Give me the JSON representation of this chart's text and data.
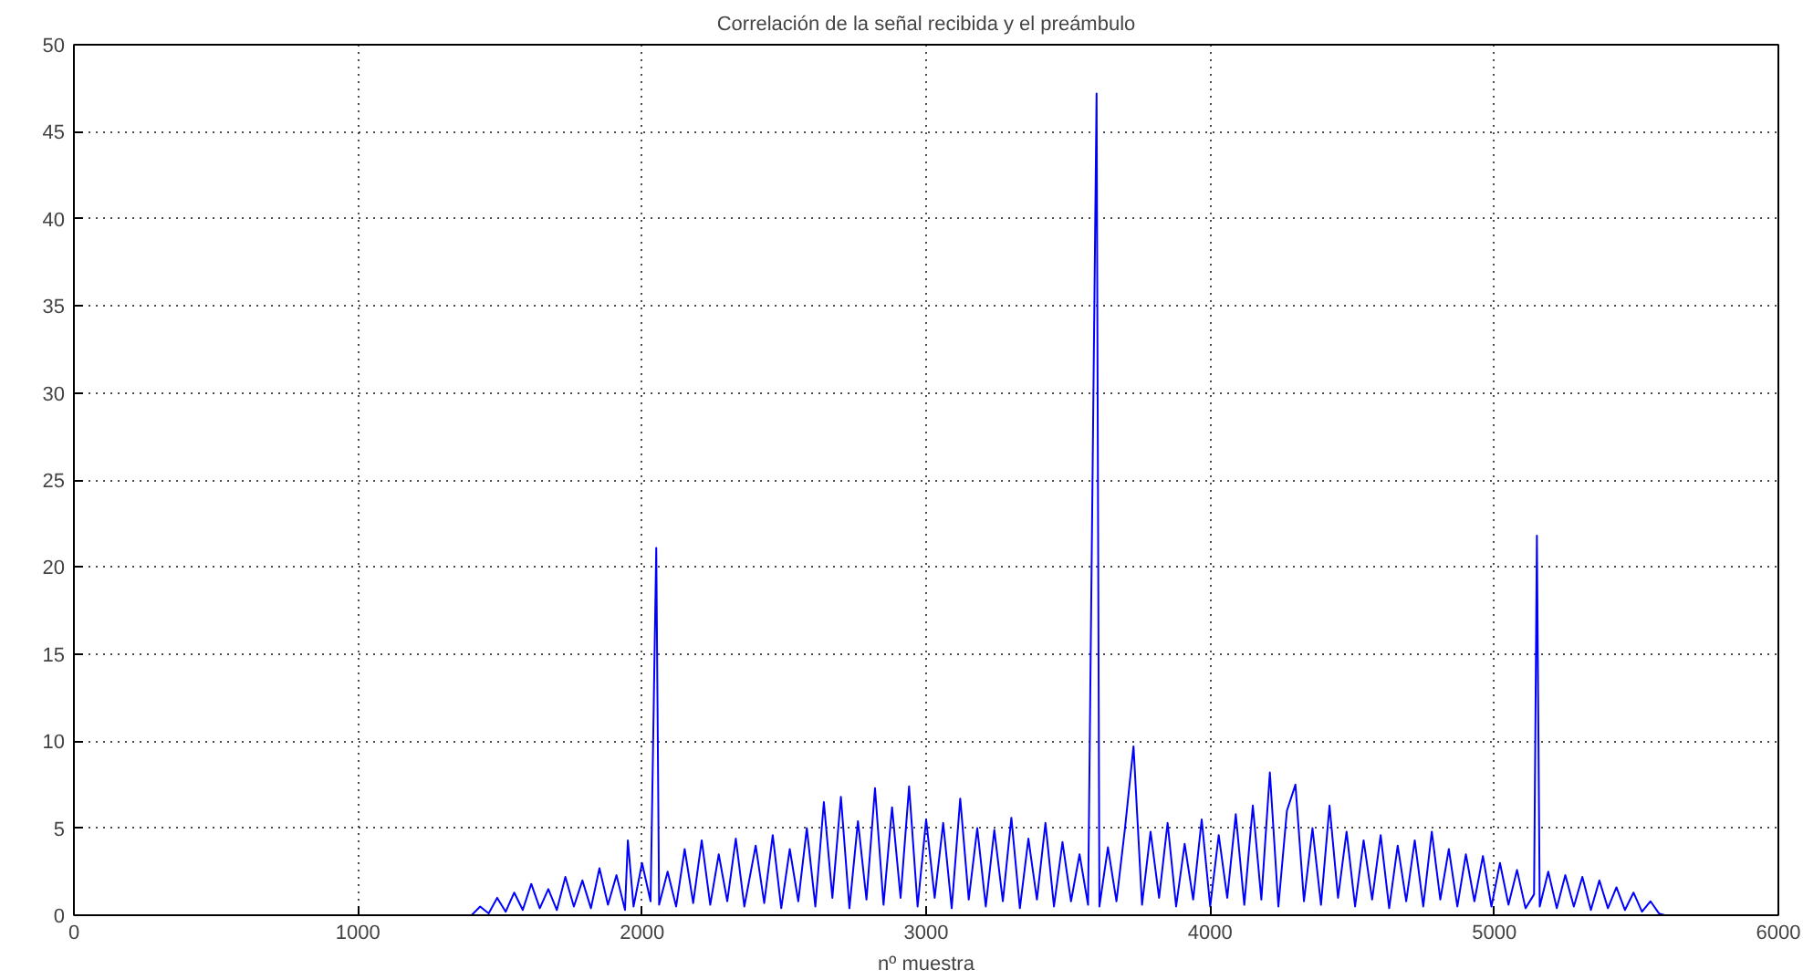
{
  "chart_data": {
    "type": "line",
    "title": "Correlación de la señal recibida y el preámbulo",
    "xlabel": "nº muestra",
    "xlim": [
      0,
      6000
    ],
    "xticks": [
      0,
      1000,
      2000,
      3000,
      4000,
      5000,
      6000
    ],
    "ylim": [
      0,
      50
    ],
    "yticks": [
      0,
      5,
      10,
      15,
      20,
      25,
      30,
      35,
      40,
      45,
      50
    ],
    "grid": true,
    "marker": "none",
    "line_style": "solid",
    "series": [
      {
        "color": "#0000ff",
        "x": [
          1400,
          1430,
          1460,
          1490,
          1520,
          1550,
          1580,
          1610,
          1640,
          1670,
          1700,
          1730,
          1760,
          1790,
          1820,
          1850,
          1880,
          1910,
          1940,
          1950,
          1970,
          2000,
          2030,
          2050,
          2060,
          2090,
          2120,
          2150,
          2180,
          2210,
          2240,
          2270,
          2300,
          2330,
          2360,
          2400,
          2430,
          2460,
          2490,
          2520,
          2550,
          2580,
          2610,
          2640,
          2670,
          2700,
          2730,
          2760,
          2790,
          2820,
          2850,
          2880,
          2910,
          2940,
          2970,
          3000,
          3030,
          3060,
          3090,
          3120,
          3150,
          3180,
          3210,
          3240,
          3270,
          3300,
          3330,
          3360,
          3390,
          3420,
          3450,
          3480,
          3510,
          3540,
          3570,
          3600,
          3610,
          3640,
          3670,
          3700,
          3730,
          3760,
          3790,
          3820,
          3850,
          3880,
          3910,
          3940,
          3970,
          4000,
          4030,
          4060,
          4090,
          4120,
          4150,
          4180,
          4210,
          4240,
          4270,
          4300,
          4330,
          4360,
          4390,
          4420,
          4450,
          4480,
          4510,
          4540,
          4570,
          4600,
          4630,
          4660,
          4690,
          4720,
          4750,
          4780,
          4810,
          4840,
          4870,
          4900,
          4930,
          4960,
          4990,
          5020,
          5050,
          5080,
          5110,
          5140,
          5150,
          5160,
          5190,
          5220,
          5250,
          5280,
          5310,
          5340,
          5370,
          5400,
          5430,
          5460,
          5490,
          5520,
          5550,
          5580,
          5600
        ],
        "values": [
          0,
          0.5,
          0.1,
          1.0,
          0.2,
          1.3,
          0.3,
          1.8,
          0.4,
          1.5,
          0.3,
          2.2,
          0.5,
          2.0,
          0.4,
          2.7,
          0.6,
          2.3,
          0.3,
          4.3,
          0.5,
          3.0,
          0.8,
          21.1,
          0.6,
          2.5,
          0.5,
          3.8,
          0.7,
          4.3,
          0.6,
          3.5,
          0.8,
          4.4,
          0.5,
          4.0,
          0.7,
          4.6,
          0.4,
          3.8,
          0.8,
          5.0,
          0.5,
          6.5,
          1.0,
          6.8,
          0.4,
          5.4,
          0.9,
          7.3,
          0.6,
          6.2,
          1.0,
          7.4,
          0.5,
          5.5,
          1.0,
          5.3,
          0.4,
          6.7,
          0.9,
          5.0,
          0.5,
          4.9,
          0.8,
          5.6,
          0.4,
          4.4,
          0.9,
          5.3,
          0.5,
          4.2,
          0.8,
          3.5,
          0.6,
          47.2,
          0.5,
          3.9,
          0.8,
          5.0,
          9.7,
          0.6,
          4.8,
          1.0,
          5.3,
          0.5,
          4.1,
          0.9,
          5.5,
          0.5,
          4.6,
          1.0,
          5.8,
          0.6,
          6.3,
          0.9,
          8.2,
          0.5,
          6.0,
          7.5,
          0.8,
          5.0,
          0.6,
          6.3,
          1.0,
          4.8,
          0.5,
          4.3,
          0.9,
          4.6,
          0.4,
          4.0,
          0.8,
          4.3,
          0.5,
          4.8,
          0.9,
          3.8,
          0.5,
          3.5,
          0.8,
          3.4,
          0.5,
          3.0,
          0.6,
          2.6,
          0.4,
          1.2,
          21.8,
          0.5,
          2.5,
          0.4,
          2.3,
          0.5,
          2.2,
          0.3,
          2.0,
          0.4,
          1.6,
          0.3,
          1.3,
          0.2,
          0.8,
          0.1,
          0
        ]
      }
    ]
  }
}
